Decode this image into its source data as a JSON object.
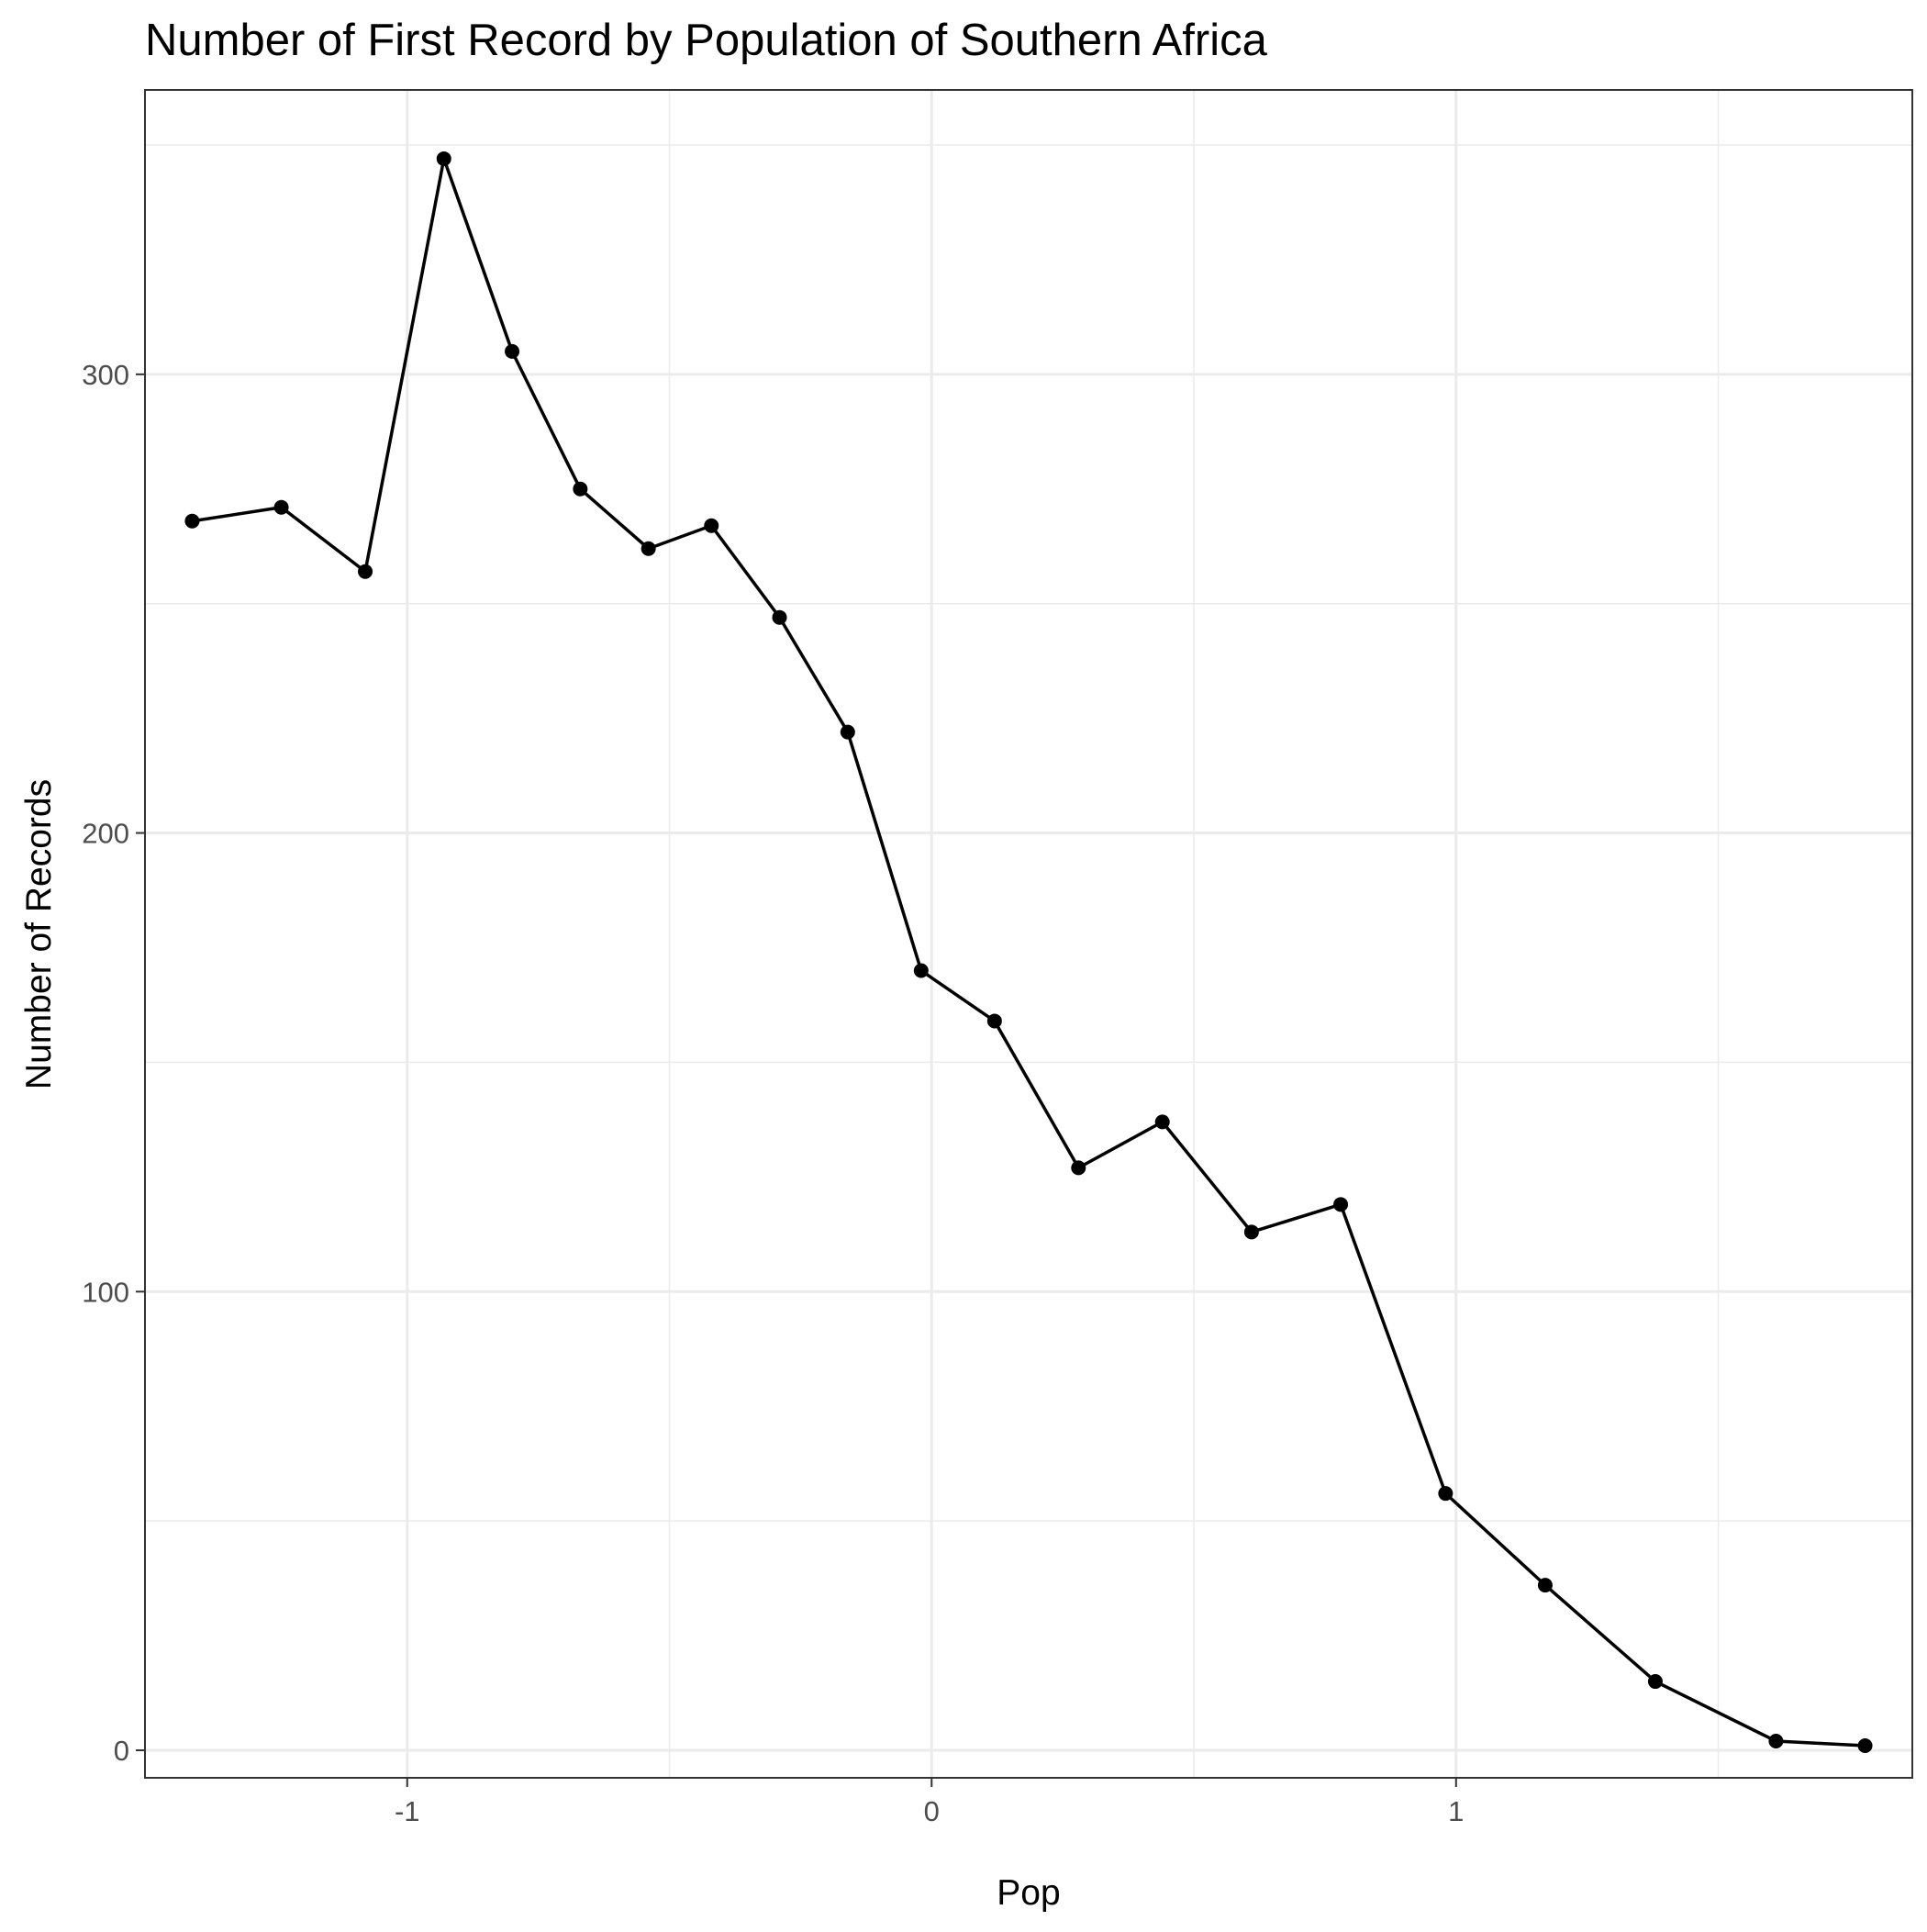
{
  "chart_data": {
    "type": "line",
    "title": "Number of First Record by Population of Southern Africa",
    "xlabel": "Pop",
    "ylabel": "Number of Records",
    "xlim": [
      -1.5,
      1.87
    ],
    "ylim": [
      -6,
      362
    ],
    "x_ticks": [
      -1,
      0,
      1
    ],
    "x_tick_labels": [
      "-1",
      "0",
      "1"
    ],
    "y_ticks": [
      0,
      100,
      200,
      300
    ],
    "y_tick_labels": [
      "0",
      "100",
      "200",
      "300"
    ],
    "grid": true,
    "legend": "none",
    "colors": {
      "line": "#000000",
      "grid": "#ebebeb",
      "border": "#333333"
    },
    "series": [
      {
        "x": [
          -1.41,
          -1.24,
          -1.08,
          -0.93,
          -0.8,
          -0.67,
          -0.54,
          -0.42,
          -0.29,
          -0.16,
          -0.02,
          0.12,
          0.28,
          0.44,
          0.61,
          0.78,
          0.98,
          1.17,
          1.38,
          1.61,
          1.78
        ],
        "values": [
          268,
          271,
          257,
          347,
          305,
          275,
          262,
          267,
          247,
          222,
          170,
          159,
          127,
          137,
          113,
          119,
          56,
          36,
          15,
          2,
          1
        ]
      }
    ]
  }
}
